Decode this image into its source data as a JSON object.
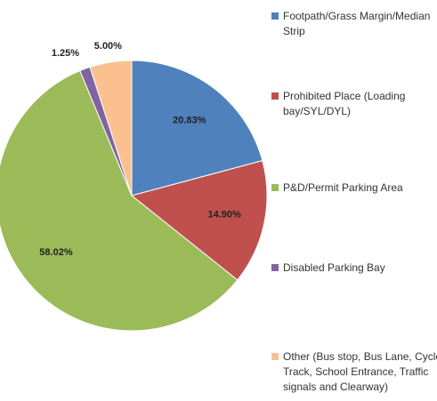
{
  "chart_data": {
    "type": "pie",
    "categories": [
      "Footpath/Grass Margin/Median Strip",
      "Prohibited Place (Loading bay/SYL/DYL)",
      "P&D/Permit Parking Area",
      "Disabled Parking Bay",
      "Other (Bus stop, Bus Lane, Cycle Track, School Entrance, Traffic signals and Clearway)"
    ],
    "values": [
      20.83,
      14.9,
      58.02,
      1.25,
      5.0
    ],
    "value_labels": [
      "20.83%",
      "14.90%",
      "58.02%",
      "1.25%",
      "5.00%"
    ],
    "colors": [
      "#4f81bd",
      "#c0504d",
      "#9bbb59",
      "#8064a2",
      "#fac090"
    ],
    "legend": "right"
  }
}
